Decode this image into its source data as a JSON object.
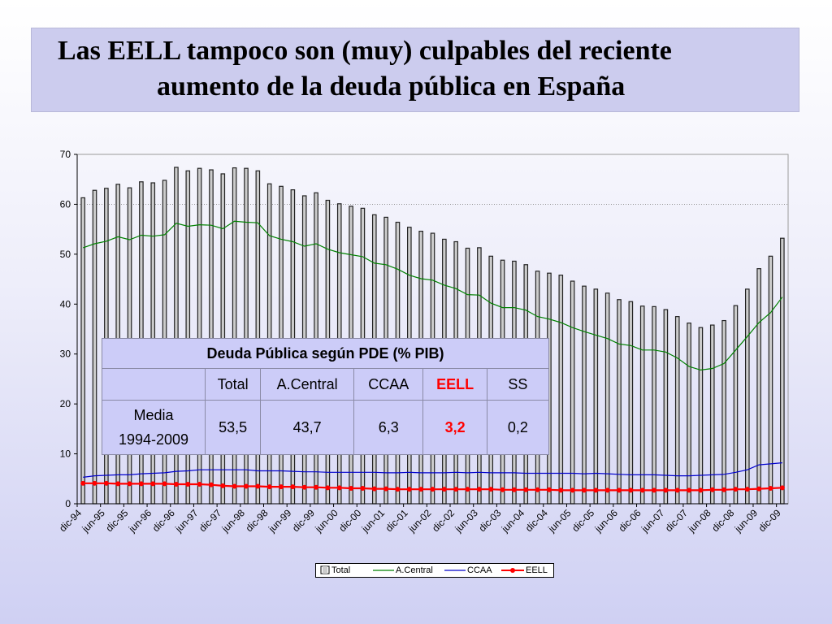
{
  "title": {
    "line1": "Las EELL tampoco son (muy) culpables del reciente",
    "line2": "aumento de la deuda pública en España"
  },
  "colors": {
    "title_bg": "#ccccee",
    "total_fill": "#333333",
    "acentral": "#008000",
    "ccaa": "#0000cc",
    "eell": "#ff0000",
    "table_bg": "#ccccf8"
  },
  "chart_data": {
    "type": "bar",
    "x_ticks": [
      "dic-94",
      "jun-95",
      "dic-95",
      "jun-96",
      "dic-96",
      "jun-97",
      "dic-97",
      "jun-98",
      "dic-98",
      "jun-99",
      "dic-99",
      "jun-00",
      "dic-00",
      "jun-01",
      "dic-01",
      "jun-02",
      "dic-02",
      "jun-03",
      "dic-03",
      "jun-04",
      "dic-04",
      "jun-05",
      "dic-05",
      "jun-06",
      "dic-06",
      "jun-07",
      "dic-07",
      "jun-08",
      "dic-08",
      "jun-09",
      "dic-09"
    ],
    "y_ticks": [
      0,
      10,
      20,
      30,
      40,
      50,
      60,
      70
    ],
    "ylim": [
      0,
      70
    ],
    "grid": "horizontal at 60 only",
    "legend_position": "bottom",
    "series": [
      {
        "name": "Total",
        "kind": "bar",
        "values": [
          61.3,
          62.8,
          63.2,
          64.0,
          63.3,
          64.5,
          64.3,
          64.8,
          67.4,
          66.7,
          67.2,
          66.9,
          66.1,
          67.3,
          67.2,
          66.7,
          64.1,
          63.6,
          62.9,
          61.7,
          62.3,
          60.8,
          60.1,
          59.6,
          59.2,
          57.9,
          57.4,
          56.4,
          55.4,
          54.6,
          54.2,
          53.0,
          52.5,
          51.2,
          51.3,
          49.6,
          48.8,
          48.6,
          47.9,
          46.6,
          46.2,
          45.8,
          44.6,
          43.6,
          43.0,
          42.2,
          40.9,
          40.5,
          39.6,
          39.5,
          38.9,
          37.5,
          36.2,
          35.3,
          35.8,
          36.7,
          39.7,
          43.0,
          47.1,
          49.6,
          53.2
        ]
      },
      {
        "name": "A.Central",
        "kind": "line",
        "values": [
          51.3,
          52.1,
          52.6,
          53.5,
          52.9,
          53.8,
          53.6,
          53.9,
          56.2,
          55.6,
          55.9,
          55.8,
          55.1,
          56.6,
          56.4,
          56.3,
          53.7,
          53.0,
          52.5,
          51.6,
          52.1,
          51.0,
          50.3,
          49.9,
          49.5,
          48.2,
          47.9,
          47.0,
          45.8,
          45.1,
          44.8,
          43.8,
          43.1,
          41.9,
          41.8,
          40.2,
          39.3,
          39.3,
          38.8,
          37.5,
          37.0,
          36.3,
          35.3,
          34.5,
          33.8,
          33.1,
          32.0,
          31.7,
          30.8,
          30.8,
          30.4,
          29.2,
          27.5,
          26.8,
          27.1,
          28.1,
          30.8,
          33.5,
          36.3,
          38.3,
          41.4
        ]
      },
      {
        "name": "CCAA",
        "kind": "line",
        "values": [
          5.3,
          5.6,
          5.7,
          5.8,
          5.8,
          6.0,
          6.1,
          6.2,
          6.5,
          6.6,
          6.8,
          6.8,
          6.8,
          6.8,
          6.8,
          6.6,
          6.6,
          6.6,
          6.5,
          6.4,
          6.4,
          6.3,
          6.3,
          6.3,
          6.3,
          6.3,
          6.2,
          6.2,
          6.3,
          6.2,
          6.2,
          6.2,
          6.3,
          6.2,
          6.3,
          6.2,
          6.2,
          6.2,
          6.1,
          6.1,
          6.1,
          6.1,
          6.1,
          6.0,
          6.1,
          6.0,
          5.9,
          5.8,
          5.8,
          5.8,
          5.7,
          5.6,
          5.6,
          5.7,
          5.8,
          5.9,
          6.3,
          6.8,
          7.8,
          8.0,
          8.2
        ]
      },
      {
        "name": "EELL",
        "kind": "line-marker",
        "values": [
          4.1,
          4.1,
          4.1,
          4.0,
          4.0,
          4.0,
          4.0,
          4.0,
          3.9,
          3.9,
          3.9,
          3.8,
          3.6,
          3.5,
          3.5,
          3.5,
          3.4,
          3.4,
          3.4,
          3.3,
          3.3,
          3.2,
          3.2,
          3.1,
          3.1,
          3.0,
          3.0,
          2.9,
          2.9,
          2.9,
          2.9,
          2.9,
          2.9,
          2.9,
          2.9,
          2.9,
          2.8,
          2.8,
          2.8,
          2.8,
          2.8,
          2.7,
          2.7,
          2.7,
          2.7,
          2.7,
          2.7,
          2.7,
          2.7,
          2.7,
          2.7,
          2.7,
          2.7,
          2.7,
          2.8,
          2.8,
          2.9,
          2.9,
          3.0,
          3.1,
          3.2
        ]
      }
    ],
    "table": {
      "title": "Deuda Pública según PDE (% PIB)",
      "headers": [
        "",
        "Total",
        "A.Central",
        "CCAA",
        "EELL",
        "SS"
      ],
      "row_label_line1": "Media",
      "row_label_line2": "1994-2009",
      "values": [
        "53,5",
        "43,7",
        "6,3",
        "3,2",
        "0,2"
      ]
    }
  }
}
